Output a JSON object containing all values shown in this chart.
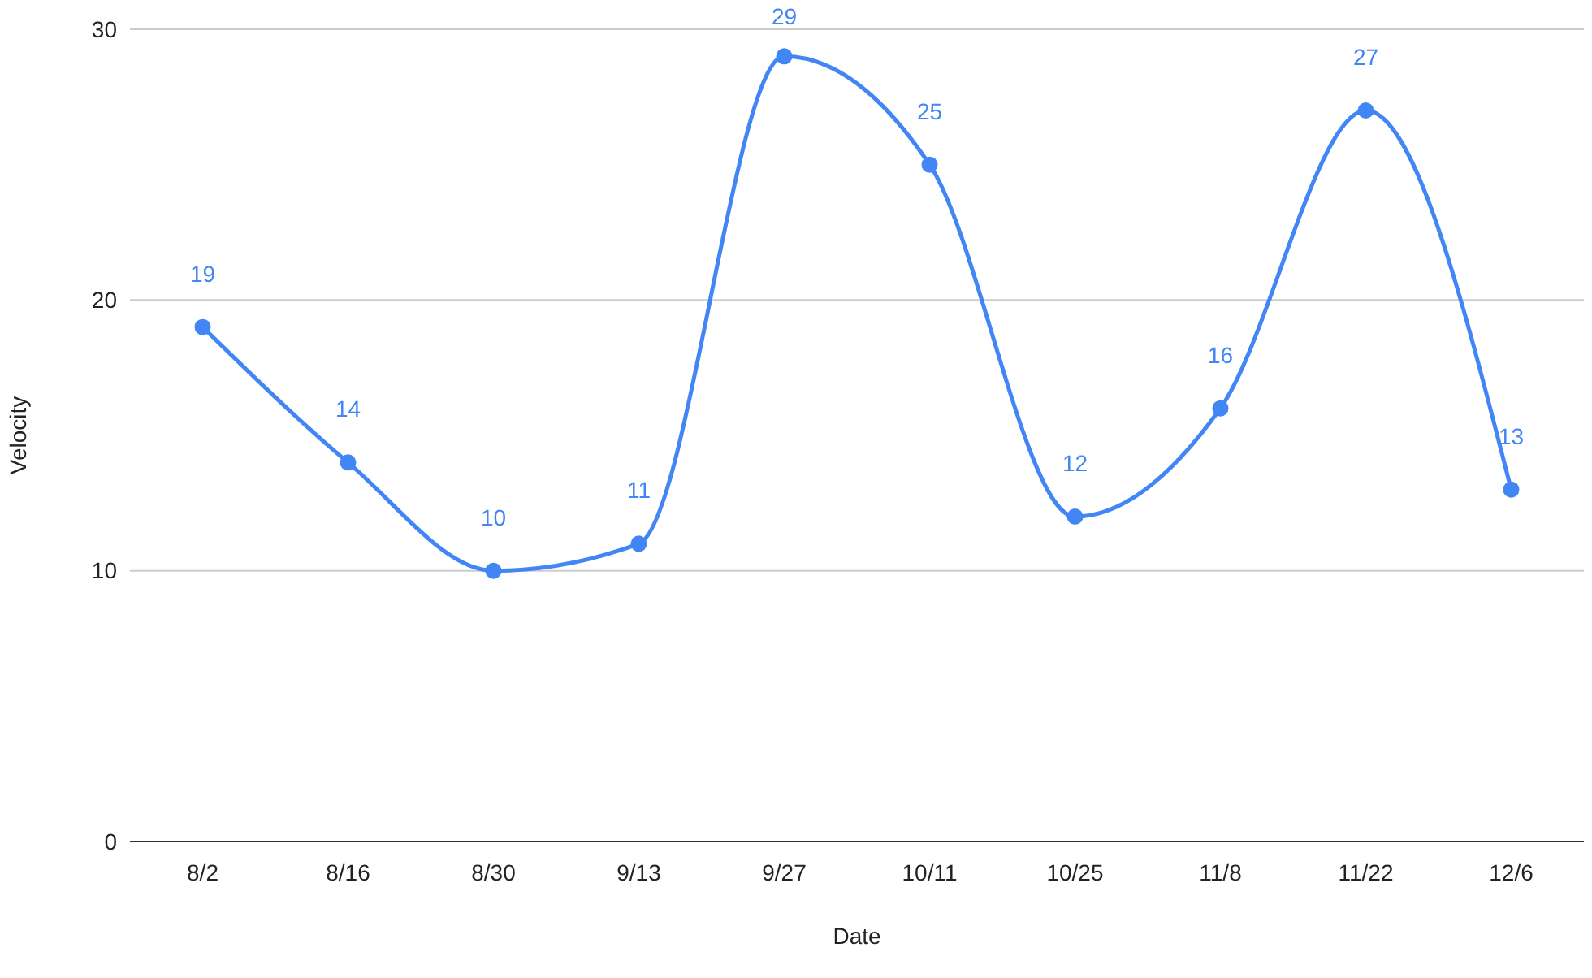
{
  "chart_data": {
    "type": "line",
    "xlabel": "Date",
    "ylabel": "Velocity",
    "categories": [
      "8/2",
      "8/16",
      "8/30",
      "9/13",
      "9/27",
      "10/11",
      "10/25",
      "11/8",
      "11/22",
      "12/6"
    ],
    "series": [
      {
        "color": "#4285f4",
        "values": [
          19,
          14,
          10,
          11,
          29,
          25,
          12,
          16,
          27,
          13
        ]
      }
    ],
    "ylim": [
      0,
      30
    ],
    "yticks": [
      0,
      10,
      20,
      30
    ],
    "grid": "y",
    "marker": "circle",
    "data_labels": true
  }
}
